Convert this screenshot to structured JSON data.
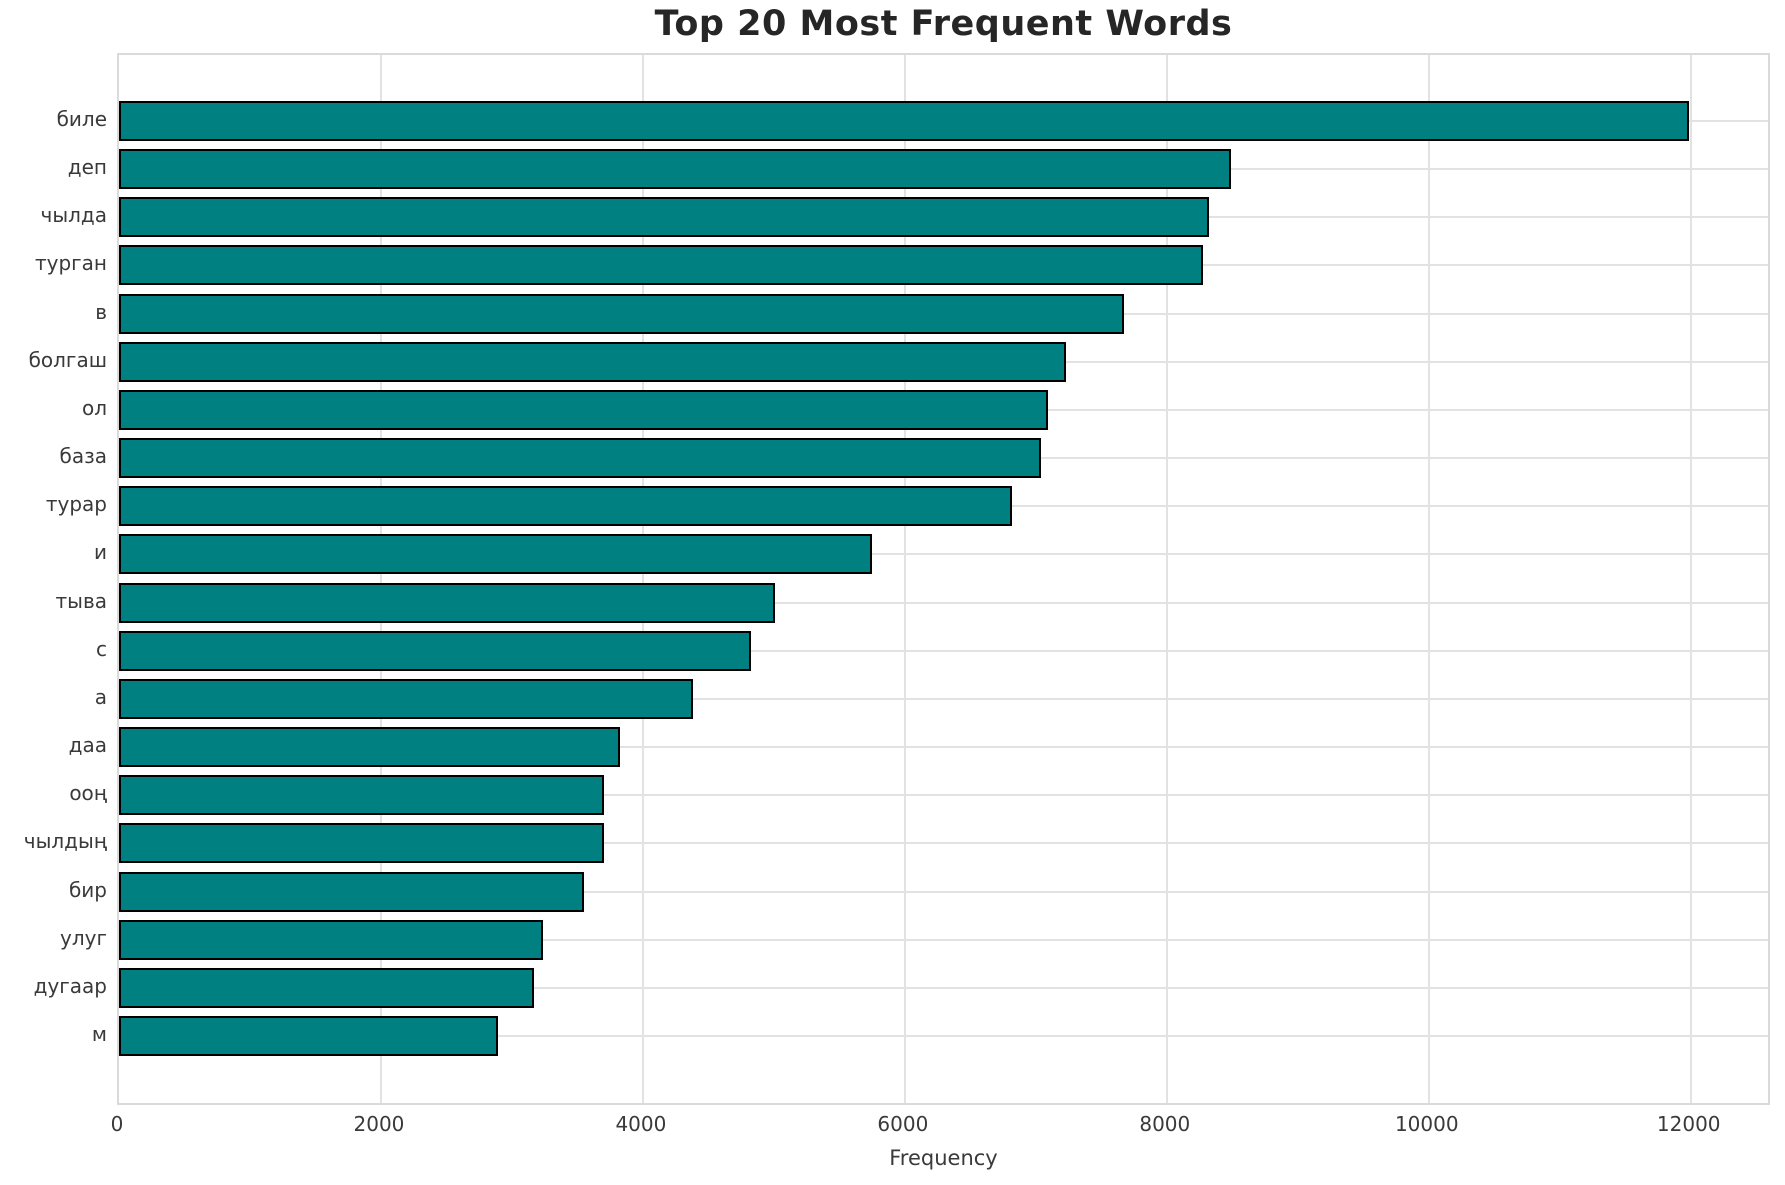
{
  "chart_data": {
    "type": "bar",
    "orientation": "horizontal",
    "title": "Top 20 Most Frequent Words",
    "xlabel": "Frequency",
    "ylabel": "",
    "categories": [
      "биле",
      "деп",
      "чылда",
      "турган",
      "в",
      "болгаш",
      "ол",
      "база",
      "турар",
      "и",
      "тыва",
      "с",
      "а",
      "даа",
      "ооң",
      "чылдың",
      "бир",
      "улуг",
      "дугаар",
      "м"
    ],
    "values": [
      11990,
      8490,
      8320,
      8275,
      7670,
      7230,
      7095,
      7040,
      6820,
      5750,
      5005,
      4825,
      4380,
      3825,
      3705,
      3700,
      3550,
      3240,
      3170,
      2890
    ],
    "xticks": [
      0,
      2000,
      4000,
      6000,
      8000,
      10000,
      12000
    ],
    "xlim": [
      0,
      12590
    ],
    "grid": true,
    "legend_position": "none",
    "bar_color": "#008080",
    "bar_edge_color": "#000000",
    "grid_color": "#e2e2e2",
    "background_color": "#ffffff",
    "title_color": "#262626",
    "tick_label_color": "#3a3a3a"
  }
}
